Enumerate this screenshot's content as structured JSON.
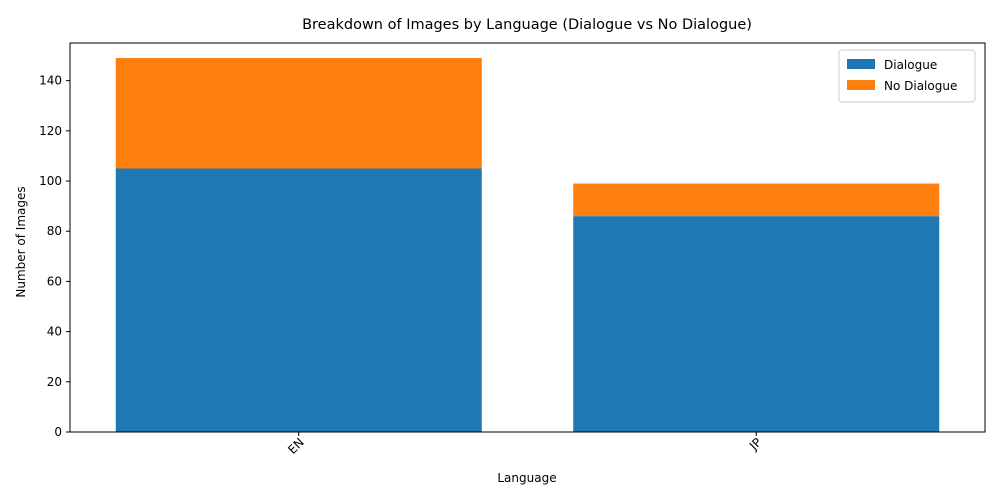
{
  "chart_data": {
    "type": "bar",
    "stacked": true,
    "title": "Breakdown of Images by Language (Dialogue vs No Dialogue)",
    "xlabel": "Language",
    "ylabel": "Number of Images",
    "categories": [
      "EN",
      "JP"
    ],
    "series": [
      {
        "name": "Dialogue",
        "values": [
          105,
          86
        ],
        "color": "#1f77b4"
      },
      {
        "name": "No Dialogue",
        "values": [
          44,
          13
        ],
        "color": "#ff7f0e"
      }
    ],
    "ylim": [
      0,
      155
    ],
    "yticks": [
      0,
      20,
      40,
      60,
      80,
      100,
      120,
      140
    ],
    "xtick_rotation": 45,
    "grid": false,
    "legend_position": "top-right"
  }
}
